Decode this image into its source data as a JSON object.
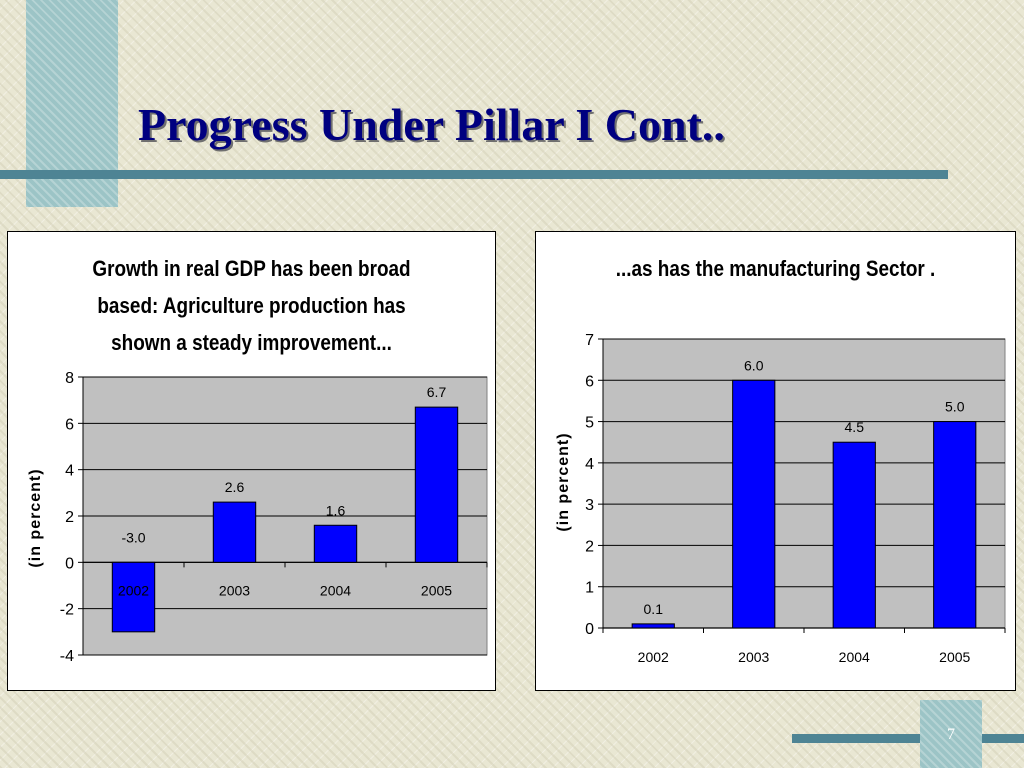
{
  "slide": {
    "title": "Progress Under Pillar I Cont..",
    "page_number": "7"
  },
  "colors": {
    "bar": "#0000ff",
    "plot_bg": "#c0c0c0",
    "title": "#000080",
    "accent": "#4e8494"
  },
  "chart_data": [
    {
      "type": "bar",
      "title": "Growth in real GDP has been broad based: Agriculture production has shown a steady improvement...",
      "xlabel": "",
      "ylabel": "(in percent)",
      "categories": [
        "2002",
        "2003",
        "2004",
        "2005"
      ],
      "values": [
        -3.0,
        2.6,
        1.6,
        6.7
      ],
      "data_labels": [
        "-3.0",
        "2.6",
        "1.6",
        "6.7"
      ],
      "ylim": [
        -4,
        8
      ],
      "yticks": [
        -4,
        -2,
        0,
        2,
        4,
        6,
        8
      ],
      "grid": true,
      "legend": "none"
    },
    {
      "type": "bar",
      "title": "...as has the manufacturing Sector .",
      "xlabel": "",
      "ylabel": "(in percent)",
      "categories": [
        "2002",
        "2003",
        "2004",
        "2005"
      ],
      "values": [
        0.1,
        6.0,
        4.5,
        5.0
      ],
      "data_labels": [
        "0.1",
        "6.0",
        "4.5",
        "5.0"
      ],
      "ylim": [
        0,
        7
      ],
      "yticks": [
        0,
        1,
        2,
        3,
        4,
        5,
        6,
        7
      ],
      "grid": true,
      "legend": "none"
    }
  ]
}
